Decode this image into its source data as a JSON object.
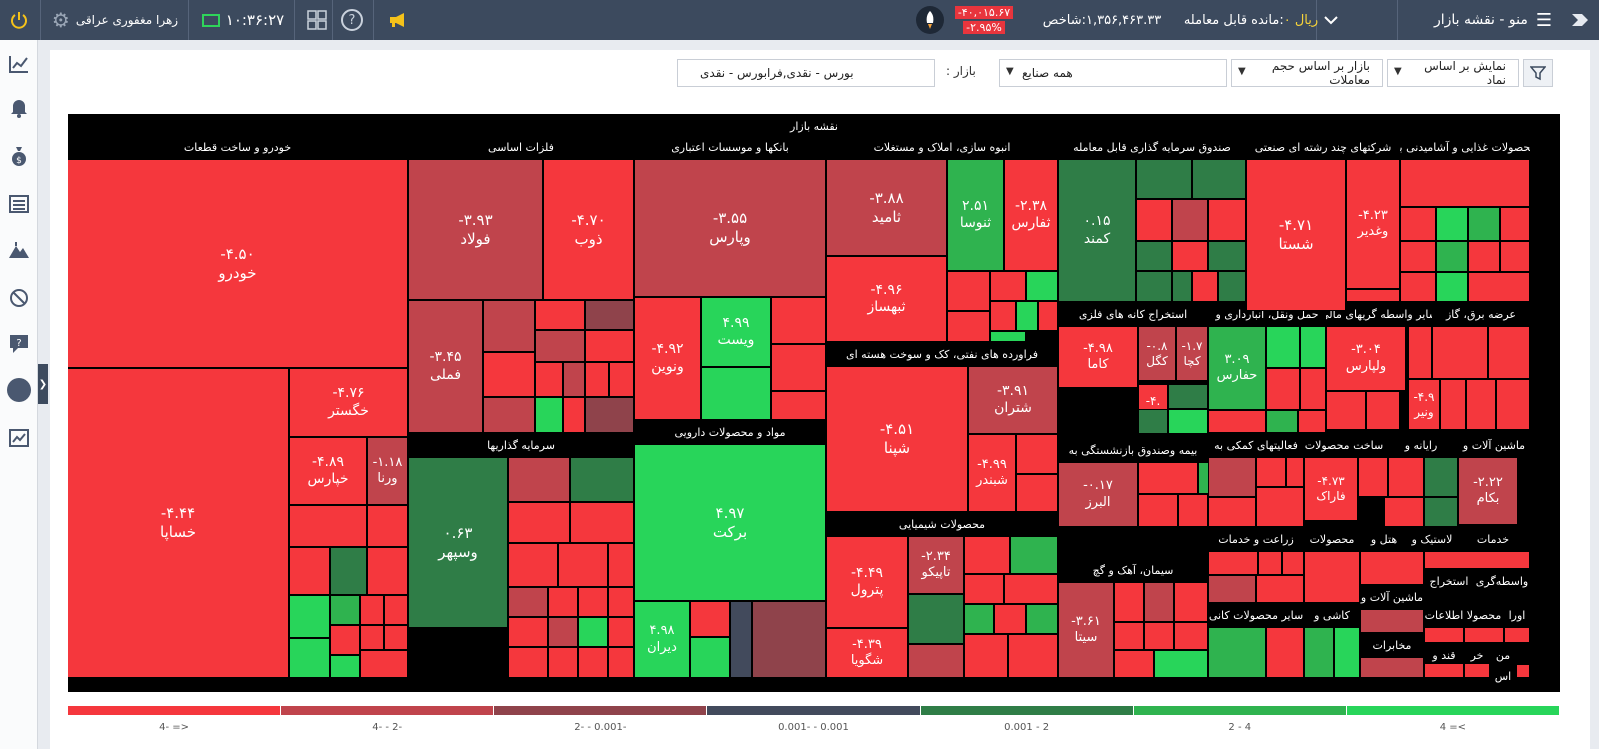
{
  "app": {
    "title": "منو - نقشه بازار"
  },
  "topbar": {
    "balance_label": "مانده قابل معامله:",
    "balance_value": "۰ ریال",
    "index_label": "شاخص:",
    "index_value": "۱,۳۵۶,۴۶۳.۳۳",
    "index_change": "-۴۰,۰۱۵.۶۷",
    "index_change_pct": "-۲.۹۵%",
    "clock": "۱۰:۳۶:۲۷",
    "user_name": "زهرا مغفوری عراقی"
  },
  "filters": {
    "display_by": "نمایش بر اساس نماد",
    "sort_by": "بازار بر اساس حجم معاملات",
    "industries": "همه صنایع",
    "market_label": "بازار :",
    "market_value": "بورس - نقدی,فرابورس - نقدی"
  },
  "map": {
    "title": "نقشه بازار",
    "groups": [
      "خودرو و ساخت قطعات",
      "فلزات اساسی",
      "بانکها و موسسات اعتباری",
      "انبوه سازی، املاک و مستغلات",
      "صندوق سرمایه گذاری قابل معامله",
      "شرکتهای چند رشته ای صنعتی",
      "محصولات غذایی و آشامیدنی به",
      "سرمایه گذاریها",
      "مواد و محصولات دارویی",
      "فراورده های نفتی، کک و سوخت هسته ای",
      "استخراج کانه های فلزی",
      "حمل ونقل، انبارداری و",
      "سایر واسطه گریهای مالی",
      "عرضه برق، گاز",
      "بیمه وصندوق بازنشستگی به",
      "فعالیتهای کمکی به",
      "ساخت محصولات",
      "رایانه و",
      "ماشین آلات و",
      "محصولات شیمیایی",
      "زراعت و خدمات",
      "محصولات",
      "هتل و",
      "لاستیک و",
      "خدمات",
      "سیمان، آهک و گچ",
      "سایر محصولات کانی",
      "کاشی و",
      "استخراج",
      "واسطه‌گری",
      "ماشین آلات و",
      "اطلاعات",
      "محصولا",
      "اورا",
      "مخابرات",
      "قند و",
      "خر",
      "من",
      "اس"
    ],
    "tiles": [
      [
        "خودرو",
        "-۴.۵۰"
      ],
      [
        "خساپا",
        "-۴.۴۴"
      ],
      [
        "خگستر",
        "-۴.۷۶"
      ],
      [
        "خپارس",
        "-۴.۸۹"
      ],
      [
        "ورنا",
        "-۱.۱۸"
      ],
      [
        "فولاد",
        "-۳.۹۳"
      ],
      [
        "ذوب",
        "-۴.۷۰"
      ],
      [
        "فملی",
        "-۳.۴۵"
      ],
      [
        "وپارس",
        "-۳.۵۵"
      ],
      [
        "ونوین",
        "-۴.۹۲"
      ],
      [
        "ویست",
        "۴.۹۹"
      ],
      [
        "ثامید",
        "-۳.۸۸"
      ],
      [
        "ثنوسا",
        "۲.۵۱"
      ],
      [
        "ثفارس",
        "-۲.۳۸"
      ],
      [
        "ثبهساز",
        "-۴.۹۶"
      ],
      [
        "کمند",
        "۰.۱۵"
      ],
      [
        "شستا",
        "-۴.۷۱"
      ],
      [
        "وغدیر",
        "-۴.۲۳"
      ],
      [
        "وسپهر",
        "۰.۶۳"
      ],
      [
        "برکت",
        "۴.۹۷"
      ],
      [
        "دیران",
        "۴.۹۸"
      ],
      [
        "شپنا",
        "-۴.۵۱"
      ],
      [
        "شتران",
        "-۳.۹۱"
      ],
      [
        "شبندر",
        "-۴.۹۹"
      ],
      [
        "کاما",
        "-۴.۹۸"
      ],
      [
        "کگل",
        "-۰.۸"
      ],
      [
        "کچا",
        "-۱.۷"
      ],
      [
        "حفارس",
        "۳.۰۹"
      ],
      [
        "ولپارس",
        "-۳.۰۴"
      ],
      [
        "ونیر",
        "-۴.۹"
      ],
      [
        "البرز",
        "-۰.۱۷"
      ],
      [
        "فاراک",
        "-۴.۷۳"
      ],
      [
        "بکام",
        "-۲.۲۲"
      ],
      [
        "پترول",
        "-۴.۴۹"
      ],
      [
        "تاپیکو",
        "-۲.۳۴"
      ],
      [
        "شگویا",
        "-۴.۳۹"
      ],
      [
        "سیتا",
        "-۳.۶۱"
      ],
      [
        "تا",
        "-۴."
      ]
    ]
  },
  "legend": [
    "4- =>",
    "4- - 2-",
    "2- - 0.001-",
    "0.001- - 0.001",
    "0.001 - 2",
    "2 - 4",
    "4 =<"
  ],
  "colors": {
    "neg_strong": "#f5373d",
    "neg_mid": "#c0444c",
    "neg_weak": "#8f434b",
    "neutral": "#424a5c",
    "pos_weak": "#2f7d47",
    "pos_mid": "#2fb34f",
    "pos_strong": "#28d55a"
  }
}
